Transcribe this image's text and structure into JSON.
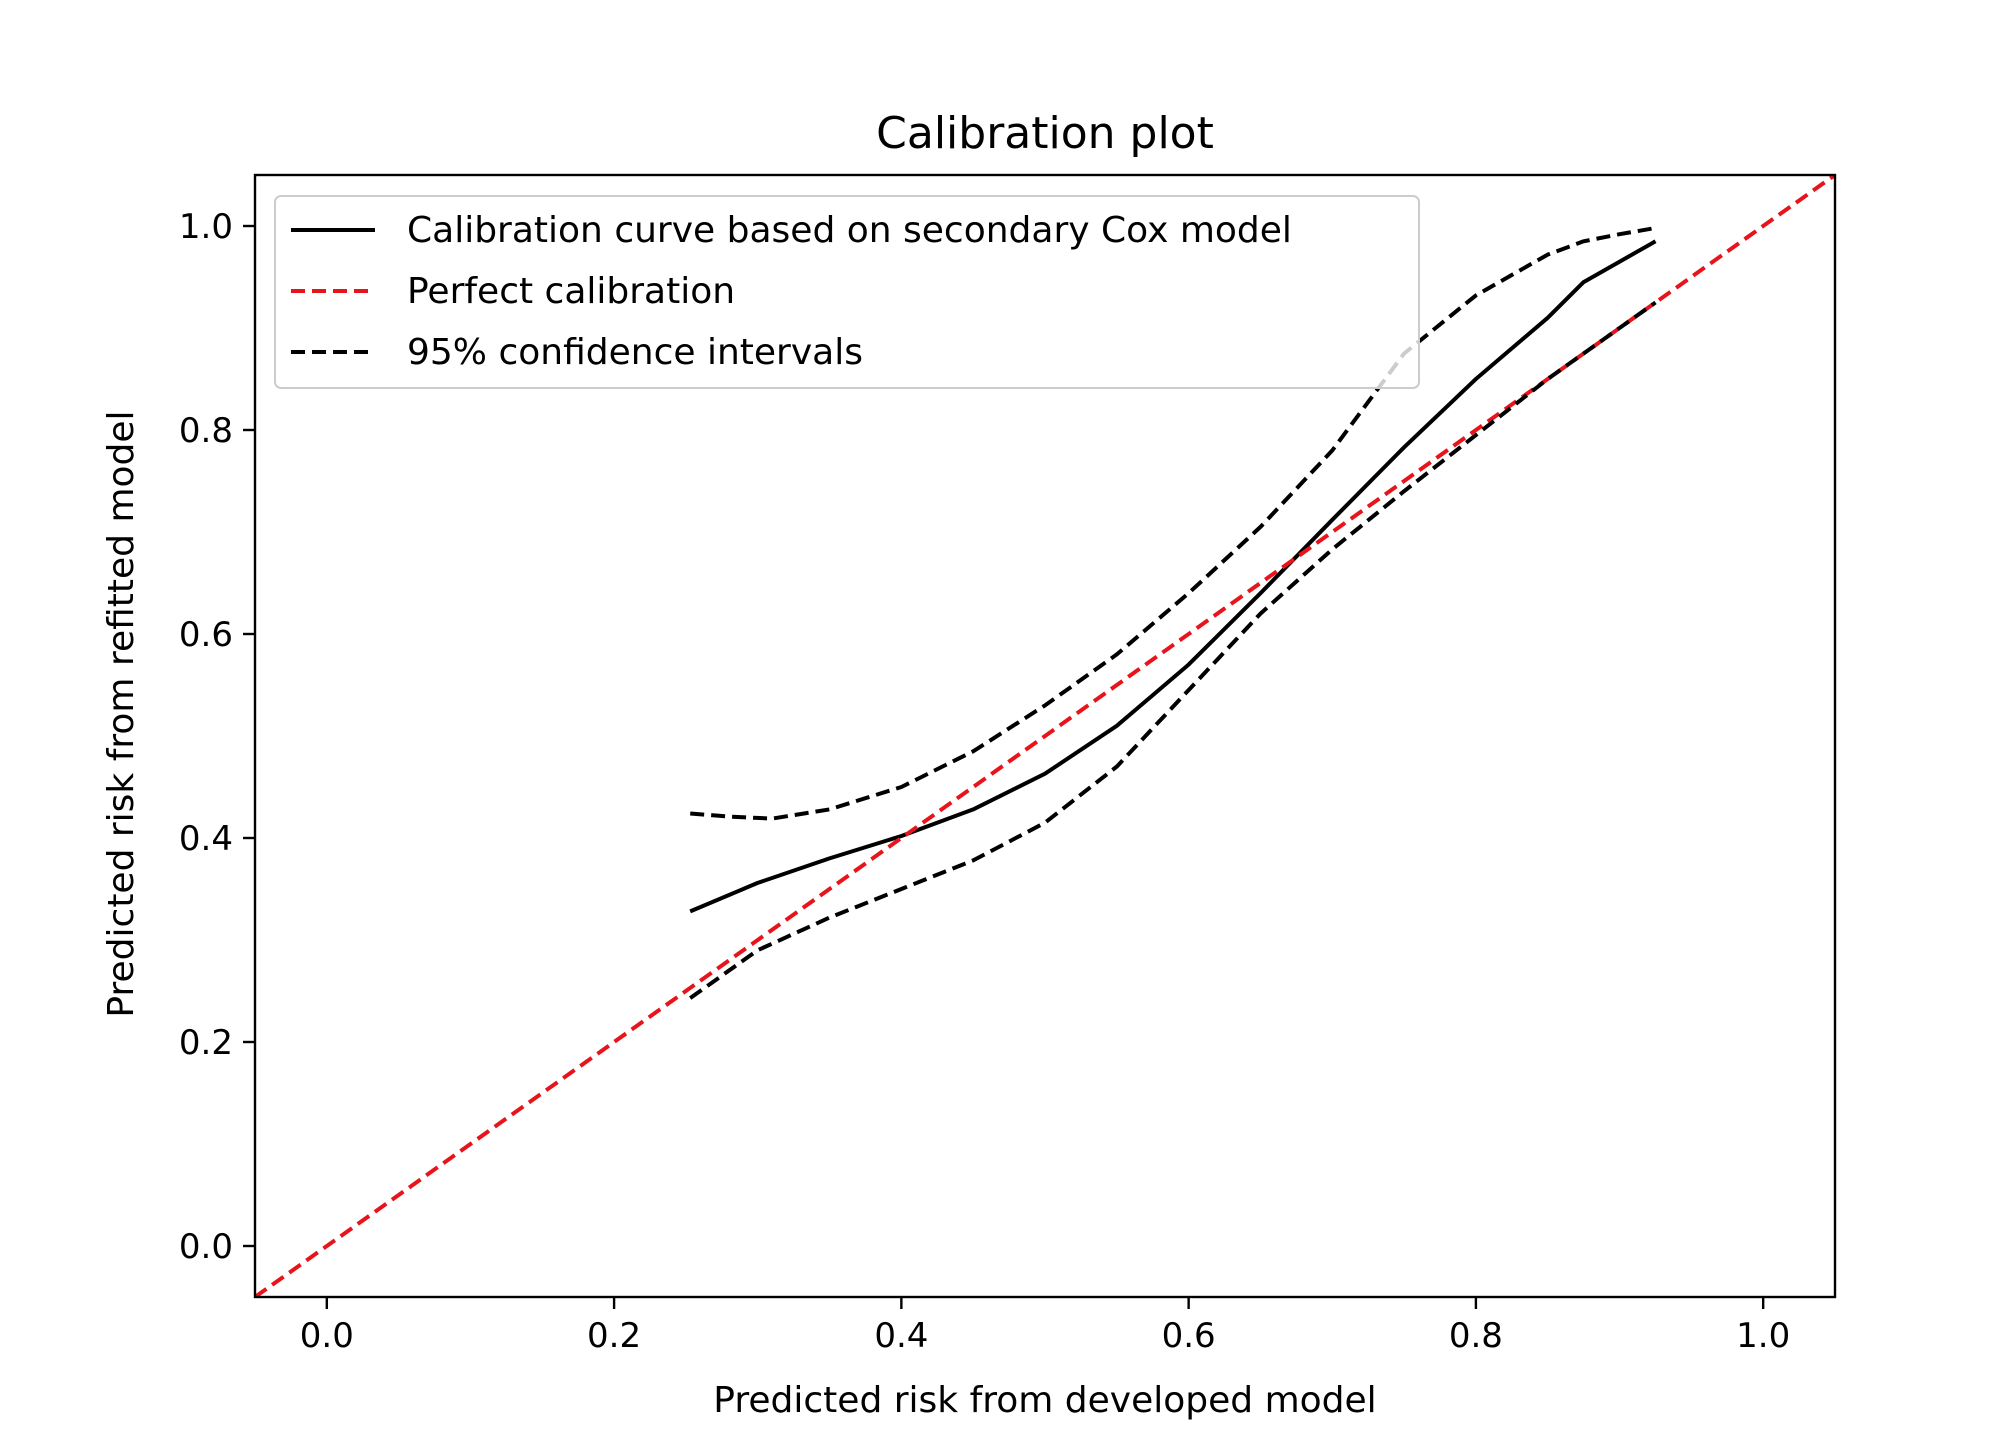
{
  "chart_data": {
    "type": "line",
    "title": "Calibration plot",
    "xlabel": "Predicted risk from developed model",
    "ylabel": "Predicted risk from refitted model",
    "xlim": [
      -0.05,
      1.05
    ],
    "ylim": [
      -0.05,
      1.05
    ],
    "xticks": [
      "0.0",
      "0.2",
      "0.4",
      "0.6",
      "0.8",
      "1.0"
    ],
    "yticks": [
      "0.0",
      "0.2",
      "0.4",
      "0.6",
      "0.8",
      "1.0"
    ],
    "grid": false,
    "legend_position": "top-left",
    "series": [
      {
        "name": "Calibration curve based on secondary Cox model",
        "style": "solid",
        "color": "#000000",
        "x": [
          0.253,
          0.3,
          0.35,
          0.4,
          0.45,
          0.5,
          0.55,
          0.6,
          0.65,
          0.7,
          0.75,
          0.8,
          0.85,
          0.875,
          0.9,
          0.925
        ],
        "y": [
          0.328,
          0.356,
          0.38,
          0.402,
          0.428,
          0.463,
          0.51,
          0.57,
          0.64,
          0.712,
          0.783,
          0.85,
          0.91,
          0.945,
          0.965,
          0.985
        ]
      },
      {
        "name": "Perfect calibration",
        "style": "dashed",
        "color": "#e8141c",
        "x": [
          -0.05,
          1.05
        ],
        "y": [
          -0.05,
          1.05
        ]
      },
      {
        "name": "95% confidence intervals",
        "style": "dashed",
        "color": "#000000",
        "x": [
          0.253,
          0.28,
          0.31,
          0.35,
          0.4,
          0.45,
          0.5,
          0.55,
          0.6,
          0.65,
          0.7,
          0.75,
          0.8,
          0.85,
          0.875,
          0.9,
          0.925
        ],
        "y": [
          0.424,
          0.421,
          0.419,
          0.428,
          0.45,
          0.485,
          0.53,
          0.58,
          0.64,
          0.705,
          0.78,
          0.875,
          0.932,
          0.972,
          0.985,
          0.992,
          0.998
        ]
      },
      {
        "name": "",
        "style": "dashed",
        "color": "#000000",
        "x": [
          0.253,
          0.3,
          0.35,
          0.4,
          0.45,
          0.5,
          0.55,
          0.6,
          0.65,
          0.7,
          0.75,
          0.8,
          0.85,
          0.9,
          0.925
        ],
        "y": [
          0.243,
          0.29,
          0.322,
          0.35,
          0.378,
          0.415,
          0.47,
          0.545,
          0.62,
          0.683,
          0.74,
          0.795,
          0.85,
          0.9,
          0.925
        ]
      }
    ]
  }
}
